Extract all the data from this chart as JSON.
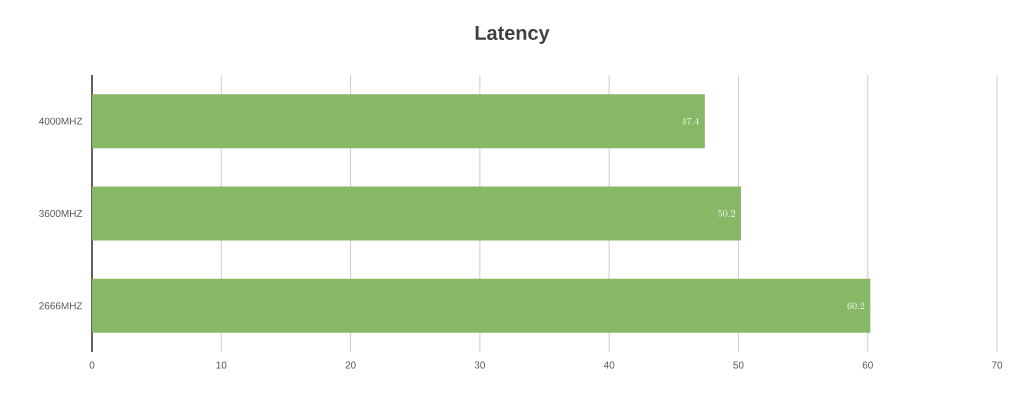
{
  "chart_data": {
    "type": "bar",
    "title": "Latency",
    "orientation": "horizontal",
    "categories": [
      "4000MHZ",
      "3600MHZ",
      "2666MHZ"
    ],
    "values": [
      47.4,
      50.2,
      60.2
    ],
    "color": "#87b865",
    "xlim": [
      0,
      70
    ],
    "xticks": [
      0,
      10,
      20,
      30,
      40,
      50,
      60,
      70
    ],
    "grid": "x",
    "data_labels": true
  }
}
